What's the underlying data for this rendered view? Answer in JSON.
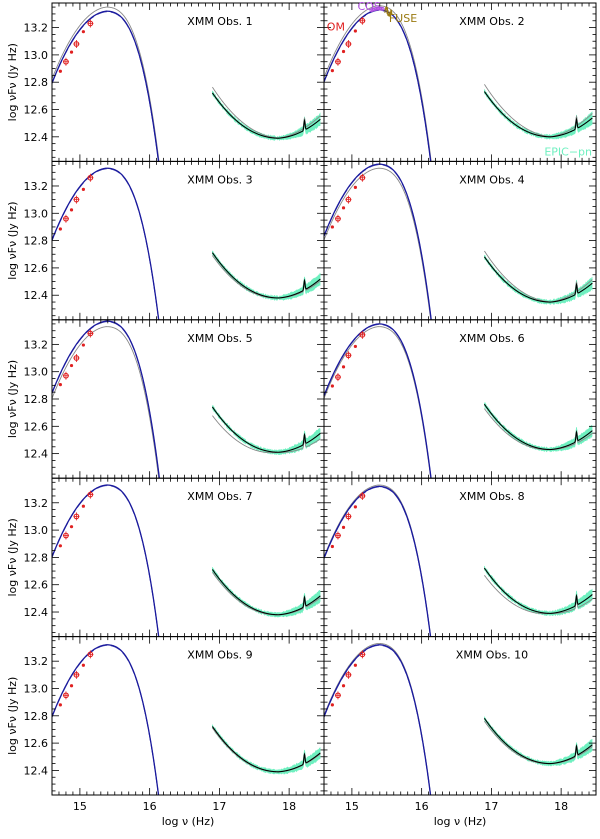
{
  "figure": {
    "x_label": "log ν (Hz)",
    "y_label": "log νFν (Jy Hz)",
    "annotations": {
      "om": "OM",
      "cos": "COS",
      "fuse": "FUSE",
      "epic": "EPIC−pn"
    },
    "colors": {
      "model_total": "#1a1a9e",
      "model_alt": "#888888",
      "om_points": "#e02020",
      "cos": "#b050e0",
      "fuse": "#9a7a10",
      "epic_band": "#6ff0c0",
      "xray_model": "#000000"
    }
  },
  "chart_data": {
    "type": "line",
    "layout": "5x2 panel grid, shared axes",
    "xlabel": "log ν (Hz)",
    "ylabel": "log νFν (Jy Hz)",
    "xlim": [
      14.6,
      18.5
    ],
    "ylim": [
      12.22,
      13.38
    ],
    "xticks": [
      15,
      16,
      17,
      18
    ],
    "xtick_labels": [
      "15",
      "16",
      "17",
      "18"
    ],
    "yticks": [
      12.4,
      12.6,
      12.8,
      13.0,
      13.2
    ],
    "ytick_labels": [
      "12.4",
      "12.6",
      "12.8",
      "13.0",
      "13.2"
    ],
    "panels": [
      {
        "title": "XMM Obs. 1",
        "uv_peak": 13.32,
        "alt_peak": 13.35,
        "xray_min": 12.39,
        "alt_xray_shift": 0.04,
        "om": [
          [
            14.8,
            12.95
          ],
          [
            14.95,
            13.08
          ],
          [
            15.15,
            13.23
          ]
        ]
      },
      {
        "title": "XMM Obs. 2",
        "uv_peak": 13.33,
        "alt_peak": 13.36,
        "xray_min": 12.4,
        "alt_xray_shift": 0.05,
        "om": [
          [
            14.8,
            12.95
          ],
          [
            14.95,
            13.08
          ],
          [
            15.15,
            13.25
          ]
        ]
      },
      {
        "title": "XMM Obs. 3",
        "uv_peak": 13.33,
        "alt_peak": 13.33,
        "xray_min": 12.38,
        "alt_xray_shift": -0.02,
        "om": [
          [
            14.8,
            12.96
          ],
          [
            14.95,
            13.1
          ],
          [
            15.15,
            13.26
          ]
        ]
      },
      {
        "title": "XMM Obs. 4",
        "uv_peak": 13.36,
        "alt_peak": 13.33,
        "xray_min": 12.35,
        "alt_xray_shift": 0.04,
        "om": [
          [
            14.8,
            12.96
          ],
          [
            14.95,
            13.1
          ],
          [
            15.15,
            13.26
          ]
        ]
      },
      {
        "title": "XMM Obs. 5",
        "uv_peak": 13.37,
        "alt_peak": 13.33,
        "xray_min": 12.41,
        "alt_xray_shift": -0.06,
        "om": [
          [
            14.8,
            12.97
          ],
          [
            14.95,
            13.1
          ],
          [
            15.15,
            13.28
          ]
        ]
      },
      {
        "title": "XMM Obs. 6",
        "uv_peak": 13.35,
        "alt_peak": 13.33,
        "xray_min": 12.43,
        "alt_xray_shift": -0.03,
        "om": [
          [
            14.8,
            12.96
          ],
          [
            14.95,
            13.12
          ],
          [
            15.15,
            13.27
          ]
        ]
      },
      {
        "title": "XMM Obs. 7",
        "uv_peak": 13.33,
        "alt_peak": 13.33,
        "xray_min": 12.38,
        "alt_xray_shift": -0.02,
        "om": [
          [
            14.8,
            12.96
          ],
          [
            14.95,
            13.1
          ],
          [
            15.15,
            13.26
          ]
        ]
      },
      {
        "title": "XMM Obs. 8",
        "uv_peak": 13.32,
        "alt_peak": 13.33,
        "xray_min": 12.39,
        "alt_xray_shift": -0.05,
        "om": [
          [
            14.8,
            12.96
          ],
          [
            14.95,
            13.1
          ],
          [
            15.15,
            13.25
          ]
        ]
      },
      {
        "title": "XMM Obs. 9",
        "uv_peak": 13.32,
        "alt_peak": 13.32,
        "xray_min": 12.39,
        "alt_xray_shift": -0.01,
        "om": [
          [
            14.8,
            12.95
          ],
          [
            14.95,
            13.1
          ],
          [
            15.15,
            13.25
          ]
        ]
      },
      {
        "title": "XMM Obs. 10",
        "uv_peak": 13.32,
        "alt_peak": 13.33,
        "xray_min": 12.45,
        "alt_xray_shift": -0.02,
        "om": [
          [
            14.8,
            12.95
          ],
          [
            14.95,
            13.1
          ],
          [
            15.15,
            13.25
          ]
        ]
      }
    ]
  }
}
